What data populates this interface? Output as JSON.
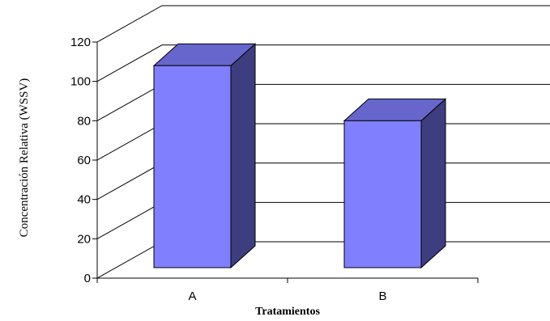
{
  "chart_data": {
    "type": "bar",
    "categories": [
      "A",
      "B"
    ],
    "values": [
      108,
      80
    ],
    "title": "",
    "xlabel": "Tratamientos",
    "ylabel": "Concentración Relativa (WSSV)",
    "ylim": [
      0,
      120
    ],
    "yticks": [
      0,
      20,
      40,
      60,
      80,
      100,
      120
    ],
    "grid": true,
    "legend": "none",
    "three_d": true,
    "colors": {
      "bar_front": "#8080ff",
      "bar_top": "#6666cc",
      "bar_side": "#3d3d80",
      "grid": "#000000",
      "axis": "#000000"
    }
  }
}
